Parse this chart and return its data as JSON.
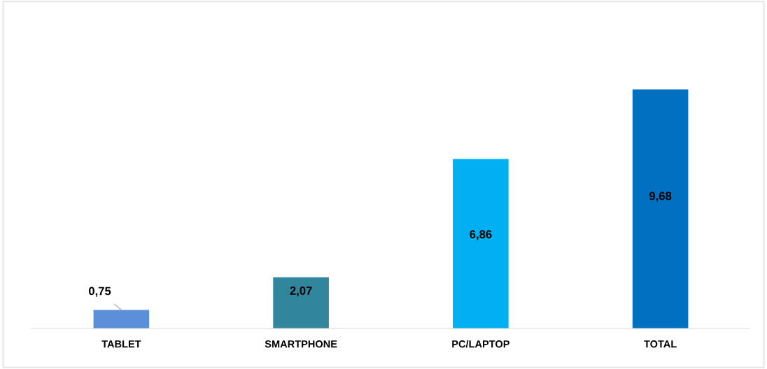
{
  "chart_data": {
    "type": "bar",
    "categories": [
      "TABLET",
      "SMARTPHONE",
      "PC/LAPTOP",
      "TOTAL"
    ],
    "values": [
      0.75,
      2.07,
      6.86,
      9.68
    ],
    "colors": [
      "#5b8fd9",
      "#31859c",
      "#00b0f0",
      "#0070c0"
    ],
    "value_labels": [
      "0,75",
      "2,07",
      "6,86",
      "9,68"
    ],
    "grid": false,
    "legend": false
  }
}
